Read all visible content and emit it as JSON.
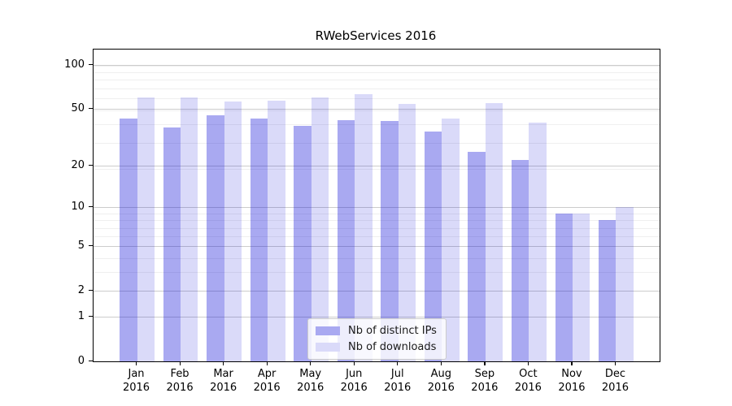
{
  "chart_data": {
    "type": "bar",
    "title": "RWebServices 2016",
    "categories": [
      {
        "month": "Jan",
        "year": "2016"
      },
      {
        "month": "Feb",
        "year": "2016"
      },
      {
        "month": "Mar",
        "year": "2016"
      },
      {
        "month": "Apr",
        "year": "2016"
      },
      {
        "month": "May",
        "year": "2016"
      },
      {
        "month": "Jun",
        "year": "2016"
      },
      {
        "month": "Jul",
        "year": "2016"
      },
      {
        "month": "Aug",
        "year": "2016"
      },
      {
        "month": "Sep",
        "year": "2016"
      },
      {
        "month": "Oct",
        "year": "2016"
      },
      {
        "month": "Nov",
        "year": "2016"
      },
      {
        "month": "Dec",
        "year": "2016"
      }
    ],
    "series": [
      {
        "name": "Nb of distinct IPs",
        "values": [
          43,
          37,
          45,
          43,
          38,
          42,
          41,
          35,
          25,
          22,
          9,
          8
        ],
        "color": "rgba(10,10,215,0.35)",
        "color_hex_on_white": "#a9a9f1"
      },
      {
        "name": "Nb of downloads",
        "values": [
          60,
          60,
          56,
          57,
          60,
          63,
          54,
          43,
          55,
          40,
          9,
          10
        ],
        "color": "rgba(10,10,215,0.15)",
        "color_hex_on_white": "#dadaf9"
      }
    ],
    "y_axis": {
      "scale": "log10(1+v)",
      "ticks": [
        0,
        1,
        2,
        5,
        10,
        20,
        50,
        100
      ],
      "range": [
        0,
        127
      ]
    },
    "x_axis": {
      "tick_label_format": "month over year, two lines"
    },
    "legend": {
      "position": "lower center",
      "entries": [
        "Nb of distinct IPs",
        "Nb of downloads"
      ]
    },
    "grid": {
      "major_color": "#cccccc",
      "minor_color": "#efefef",
      "minor_positions_1pv": [
        4,
        5,
        7,
        8,
        9,
        10,
        20,
        30,
        40,
        50,
        60,
        70,
        80,
        90,
        100
      ]
    }
  }
}
